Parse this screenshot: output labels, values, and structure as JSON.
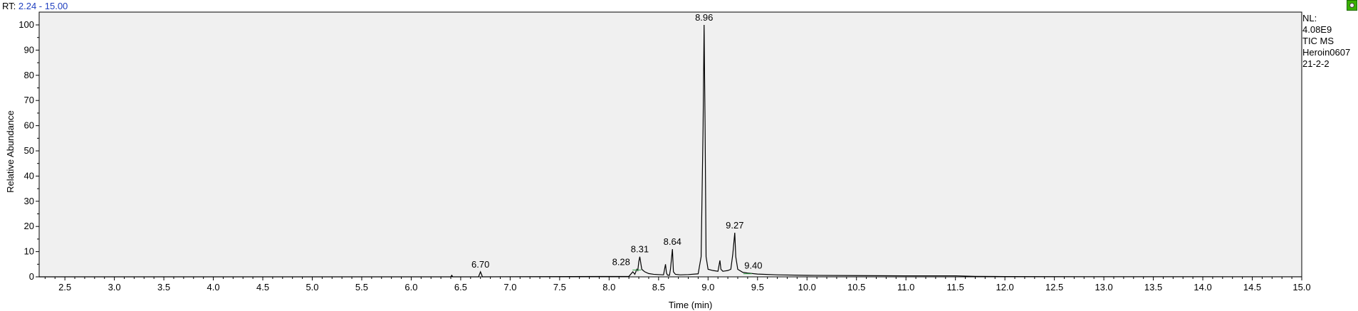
{
  "header": {
    "rt_prefix": "RT:",
    "rt_range": "2.24 - 15.00"
  },
  "info": {
    "lines": [
      "NL:",
      "4.08E9",
      "TIC  MS",
      "Heroin0607",
      "21-2-2"
    ]
  },
  "colors": {
    "plot_background": "#f0f0f0",
    "trace": "#000000",
    "rt_value": "#1f3fbf",
    "peak_marker": "#2ea043",
    "icon": "#38b000"
  },
  "chart_data": {
    "type": "line",
    "title": "",
    "xlabel": "Time (min)",
    "ylabel": "Relative Abundance",
    "xlim": [
      2.24,
      15.0
    ],
    "ylim": [
      0,
      100
    ],
    "x_ticks": [
      2.5,
      3.0,
      3.5,
      4.0,
      4.5,
      5.0,
      5.5,
      6.0,
      6.5,
      7.0,
      7.5,
      8.0,
      8.5,
      9.0,
      9.5,
      10.0,
      10.5,
      11.0,
      11.5,
      12.0,
      12.5,
      13.0,
      13.5,
      14.0,
      14.5,
      15.0
    ],
    "x_tick_labels": [
      "2.5",
      "3.0",
      "3.5",
      "4.0",
      "4.5",
      "5.0",
      "5.5",
      "6.0",
      "6.5",
      "7.0",
      "7.5",
      "8.0",
      "8.5",
      "9.0",
      "9.5",
      "10.0",
      "10.5",
      "11.0",
      "11.5",
      "12.0",
      "12.5",
      "13.0",
      "13.5",
      "14.0",
      "14.5",
      "15.0"
    ],
    "y_ticks": [
      0,
      10,
      20,
      30,
      40,
      50,
      60,
      70,
      80,
      90,
      100
    ],
    "y_tick_labels": [
      "0",
      "10",
      "20",
      "30",
      "40",
      "50",
      "60",
      "70",
      "80",
      "90",
      "100"
    ],
    "grid": false,
    "peaks": [
      {
        "rt": 6.7,
        "label": "6.70",
        "height": 2
      },
      {
        "rt": 8.28,
        "label": "8.28",
        "height": 3
      },
      {
        "rt": 8.31,
        "label": "8.31",
        "height": 8
      },
      {
        "rt": 8.64,
        "label": "8.64",
        "height": 11
      },
      {
        "rt": 8.96,
        "label": "8.96",
        "height": 100
      },
      {
        "rt": 9.27,
        "label": "9.27",
        "height": 17.5
      },
      {
        "rt": 9.4,
        "label": "9.40",
        "height": 1.5
      }
    ],
    "series": [
      {
        "x": [
          2.24,
          6.4,
          6.41,
          6.42,
          6.68,
          6.7,
          6.72,
          8.2,
          8.24,
          8.26,
          8.28,
          8.29,
          8.3,
          8.31,
          8.33,
          8.36,
          8.4,
          8.45,
          8.5,
          8.55,
          8.57,
          8.58,
          8.59,
          8.61,
          8.62,
          8.64,
          8.65,
          8.67,
          8.72,
          8.8,
          8.9,
          8.93,
          8.95,
          8.96,
          8.97,
          8.98,
          9.0,
          9.05,
          9.1,
          9.12,
          9.13,
          9.15,
          9.2,
          9.23,
          9.25,
          9.27,
          9.28,
          9.3,
          9.35,
          9.4,
          9.5,
          9.7,
          10.0,
          10.5,
          11.0,
          11.5,
          11.6,
          11.7,
          12.0,
          13.0,
          14.0,
          15.0
        ],
        "y": [
          0,
          0,
          0.6,
          0,
          0,
          2,
          0,
          0.2,
          2,
          1,
          3,
          2.5,
          6,
          8,
          3,
          2,
          1.3,
          1,
          0.9,
          0.8,
          5,
          1.5,
          0.7,
          0.6,
          3,
          11,
          2,
          1,
          0.8,
          0.9,
          1.2,
          8,
          60,
          100,
          60,
          8,
          3,
          2.5,
          2.2,
          6.5,
          3,
          2.2,
          2.5,
          3,
          9,
          17.5,
          8,
          3,
          1.8,
          1.5,
          1.1,
          0.8,
          0.6,
          0.5,
          0.4,
          0.4,
          0.3,
          0.2,
          0.1,
          0.05,
          0.03,
          0.02
        ]
      }
    ]
  }
}
